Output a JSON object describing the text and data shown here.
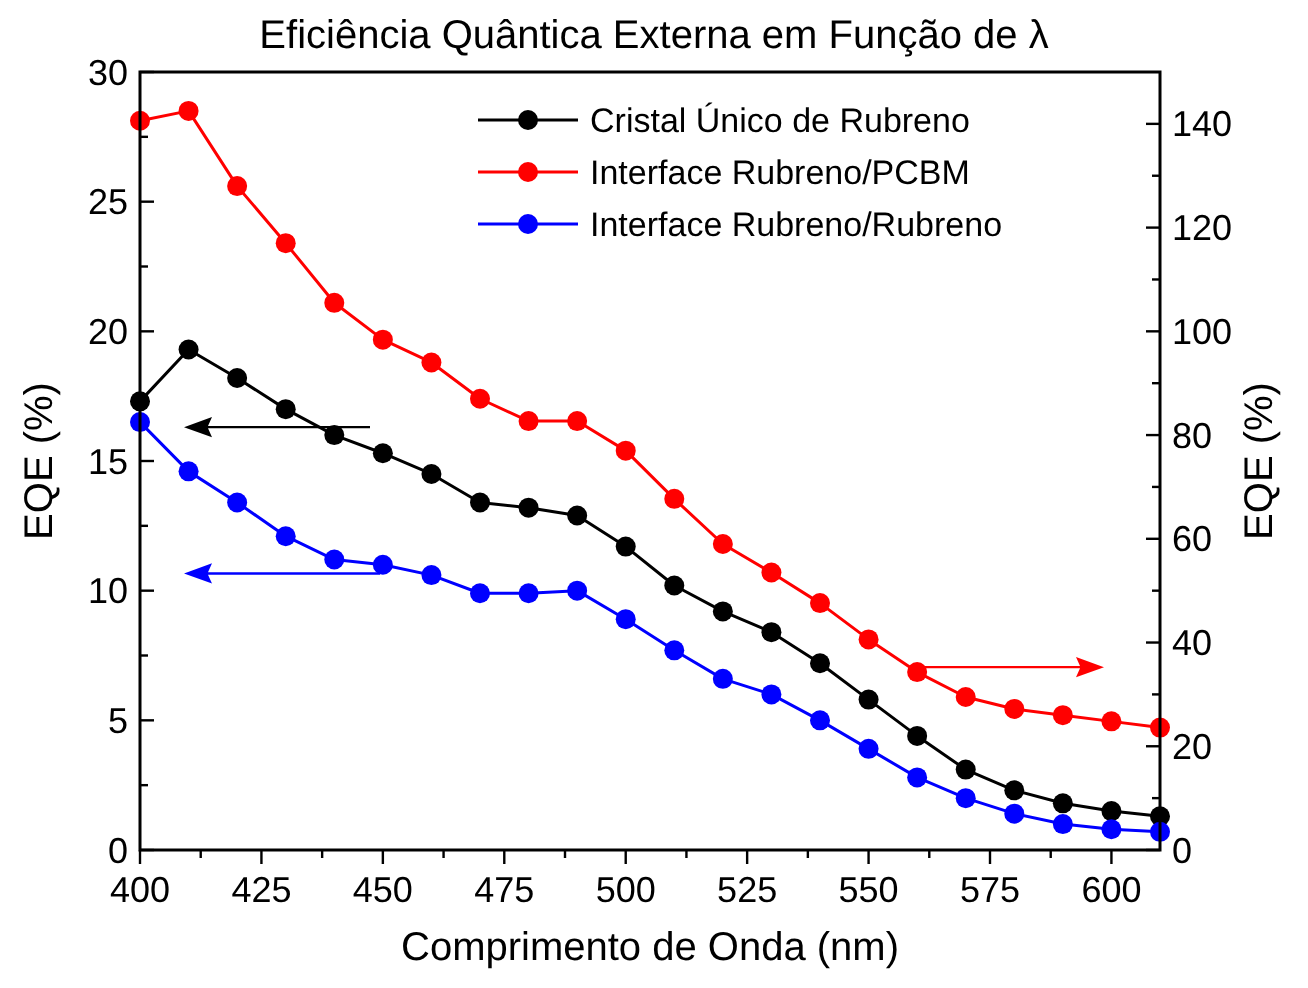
{
  "chart_data": {
    "type": "line",
    "title": "Eficiência Quântica Externa em Função de λ",
    "xlabel": "Comprimento de Onda (nm)",
    "ylabel": "EQE (%)",
    "y2label": "EQE (%)",
    "x": [
      400,
      410,
      420,
      430,
      440,
      450,
      460,
      470,
      480,
      490,
      500,
      510,
      520,
      530,
      540,
      550,
      560,
      570,
      580,
      590,
      600,
      610
    ],
    "xlim": [
      400,
      610
    ],
    "xticks": [
      400,
      {
        "value": 412.5,
        "label": null
      },
      425,
      {
        "value": 437.5,
        "label": null
      },
      450,
      {
        "value": 462.5,
        "label": null
      },
      475,
      {
        "value": 487.5,
        "label": null
      },
      500,
      {
        "value": 512.5,
        "label": null
      },
      525,
      {
        "value": 537.5,
        "label": null
      },
      550,
      {
        "value": 562.5,
        "label": null
      },
      575,
      {
        "value": 587.5,
        "label": null
      },
      600
    ],
    "ylim": [
      0,
      30
    ],
    "yticks": [
      0,
      {
        "value": 2.5,
        "label": null
      },
      5,
      {
        "value": 7.5,
        "label": null
      },
      10,
      {
        "value": 12.5,
        "label": null
      },
      15,
      {
        "value": 17.5,
        "label": null
      },
      20,
      {
        "value": 22.5,
        "label": null
      },
      25,
      {
        "value": 27.5,
        "label": null
      },
      30
    ],
    "y2lim": [
      0,
      150
    ],
    "y2ticks": [
      0,
      {
        "value": 10,
        "label": null
      },
      20,
      {
        "value": 30,
        "label": null
      },
      40,
      {
        "value": 50,
        "label": null
      },
      60,
      {
        "value": 70,
        "label": null
      },
      80,
      {
        "value": 90,
        "label": null
      },
      100,
      {
        "value": 110,
        "label": null
      },
      120,
      {
        "value": 130,
        "label": null
      },
      140
    ],
    "marker": "circle",
    "line_style": "solid",
    "grid": false,
    "legend": "top right",
    "series": [
      {
        "name": "Cristal Único de Rubreno",
        "color": "#000000",
        "values": [
          17.3,
          19.3,
          18.2,
          17.0,
          16.0,
          15.3,
          14.5,
          13.4,
          13.2,
          12.9,
          11.7,
          10.2,
          9.2,
          8.4,
          7.2,
          5.8,
          4.4,
          3.1,
          2.3,
          1.8,
          1.5,
          1.3
        ]
      },
      {
        "name": "Interface Rubreno/PCBM",
        "color": "#ff0000",
        "axis": "y2",
        "values": [
          140.6,
          142.5,
          128,
          117,
          105.5,
          98.4,
          94,
          87,
          82.7,
          82.7,
          77,
          67.7,
          59,
          53.5,
          47.6,
          40.6,
          34.3,
          29.5,
          27.2,
          26,
          24.8,
          23.6
        ]
      },
      {
        "name": "Interface Rubreno/Rubreno",
        "color": "#0000ff",
        "values": [
          16.5,
          14.6,
          13.4,
          12.1,
          11.2,
          11.0,
          10.6,
          9.9,
          9.9,
          10.0,
          8.9,
          7.7,
          6.6,
          6.0,
          5.0,
          3.9,
          2.8,
          2.0,
          1.4,
          1.0,
          0.8,
          0.7
        ]
      }
    ]
  }
}
